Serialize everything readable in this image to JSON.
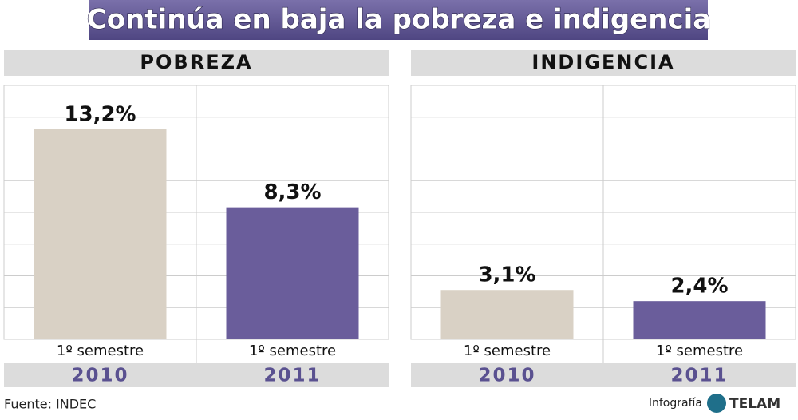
{
  "title": "Continúa en baja la pobreza e indigencia",
  "chart_data": [
    {
      "type": "bar",
      "title": "POBREZA",
      "categories": [
        "1º semestre",
        "1º semestre"
      ],
      "years": [
        "2010",
        "2011"
      ],
      "values": [
        13.2,
        8.3
      ],
      "value_labels": [
        "13,2%",
        "8,3%"
      ],
      "colors": [
        "#d9d1c5",
        "#6a5d9b"
      ]
    },
    {
      "type": "bar",
      "title": "INDIGENCIA",
      "categories": [
        "1º semestre",
        "1º semestre"
      ],
      "years": [
        "2010",
        "2011"
      ],
      "values": [
        3.1,
        2.4
      ],
      "value_labels": [
        "3,1%",
        "2,4%"
      ],
      "colors": [
        "#d9d1c5",
        "#6a5d9b"
      ]
    }
  ],
  "source": "Fuente: INDEC",
  "credit": "Infografía",
  "logo": "TELAM"
}
